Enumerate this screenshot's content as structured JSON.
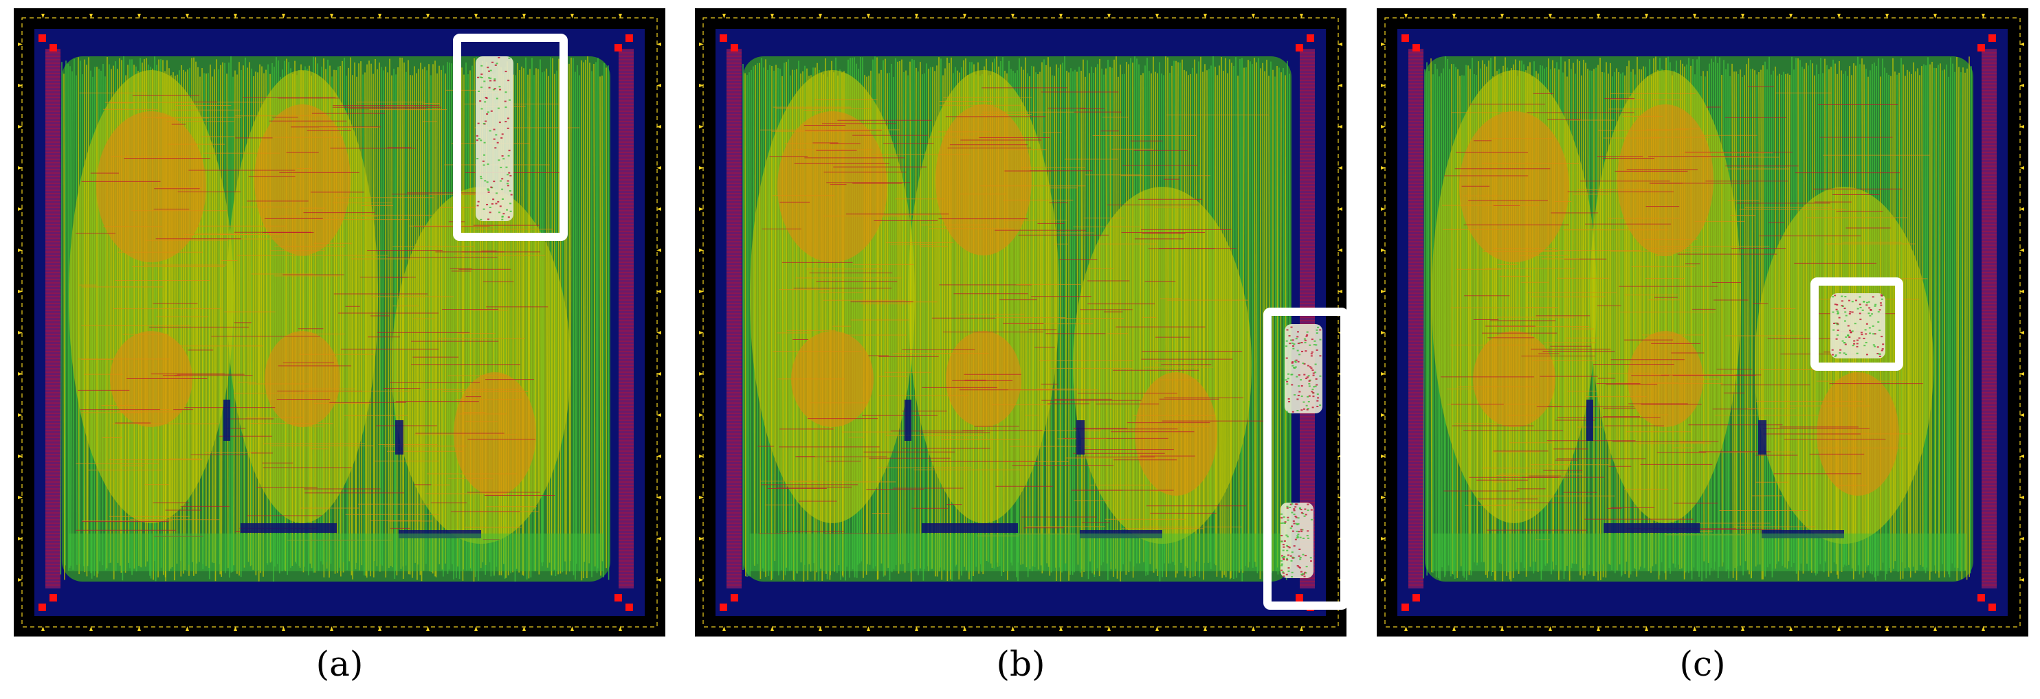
{
  "figure": {
    "panels": [
      {
        "id": "a",
        "caption": "(a)",
        "highlight_shape": "tall-top-right"
      },
      {
        "id": "b",
        "caption": "(b)",
        "highlight_shape": "tall-bottom-right"
      },
      {
        "id": "c",
        "caption": "(c)",
        "highlight_shape": "square-middle-right"
      }
    ]
  },
  "colors": {
    "background": "#000000",
    "core_navy": "#0a1070",
    "routing_green": "#3ec23a",
    "routing_yellow": "#c8c800",
    "routing_orange": "#e08a10",
    "power_red": "#c01030",
    "pad_purple": "#6a1a6a",
    "pin_yellow": "#f0d020",
    "highlight": "#ffffff"
  }
}
